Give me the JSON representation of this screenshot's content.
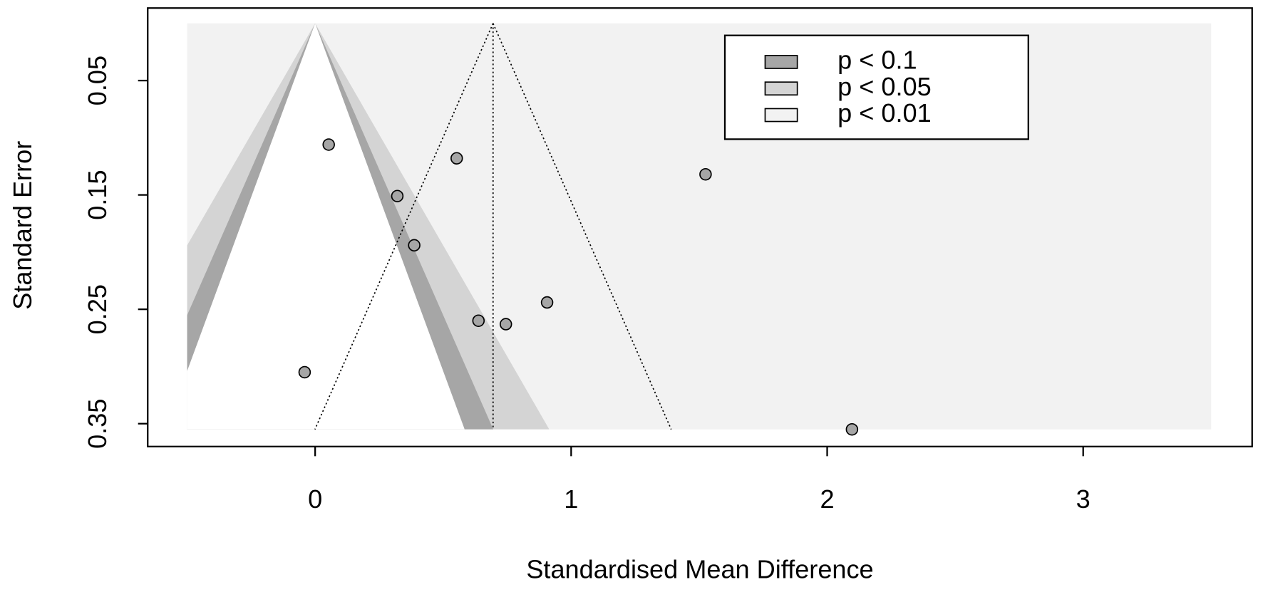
{
  "chart_data": {
    "type": "funnel",
    "x_label": "Standardised Mean Difference",
    "y_label": "Standard Error",
    "xlim": [
      -0.654,
      3.66
    ],
    "ylim": [
      0.37,
      -0.0134
    ],
    "xticks": [
      0,
      1,
      2,
      3
    ],
    "yticks": [
      0.05,
      0.15,
      0.25,
      0.35
    ],
    "contour_xlim": [
      -0.5,
      3.5
    ],
    "se_max": 0.355,
    "refline": 0,
    "estimate": 0.695,
    "funnel_z": 1.96,
    "outer_color": "#f2f2f2",
    "contours": [
      {
        "name": "p < 0.1",
        "color": "#a6a6a6",
        "z": 1.645
      },
      {
        "name": "p < 0.05",
        "color": "#d4d4d4",
        "z": 1.96
      },
      {
        "name": "p < 0.01",
        "color": "#f2f2f2",
        "z": 2.576
      }
    ],
    "series": [
      {
        "name": "studies",
        "color": "#a6a6a6",
        "x": [
          0.053,
          0.553,
          1.525,
          0.321,
          0.387,
          0.906,
          0.638,
          0.745,
          -0.041,
          2.097
        ],
        "values": [
          0.106,
          0.118,
          0.132,
          0.151,
          0.194,
          0.244,
          0.26,
          0.263,
          0.305,
          0.355
        ]
      }
    ]
  }
}
